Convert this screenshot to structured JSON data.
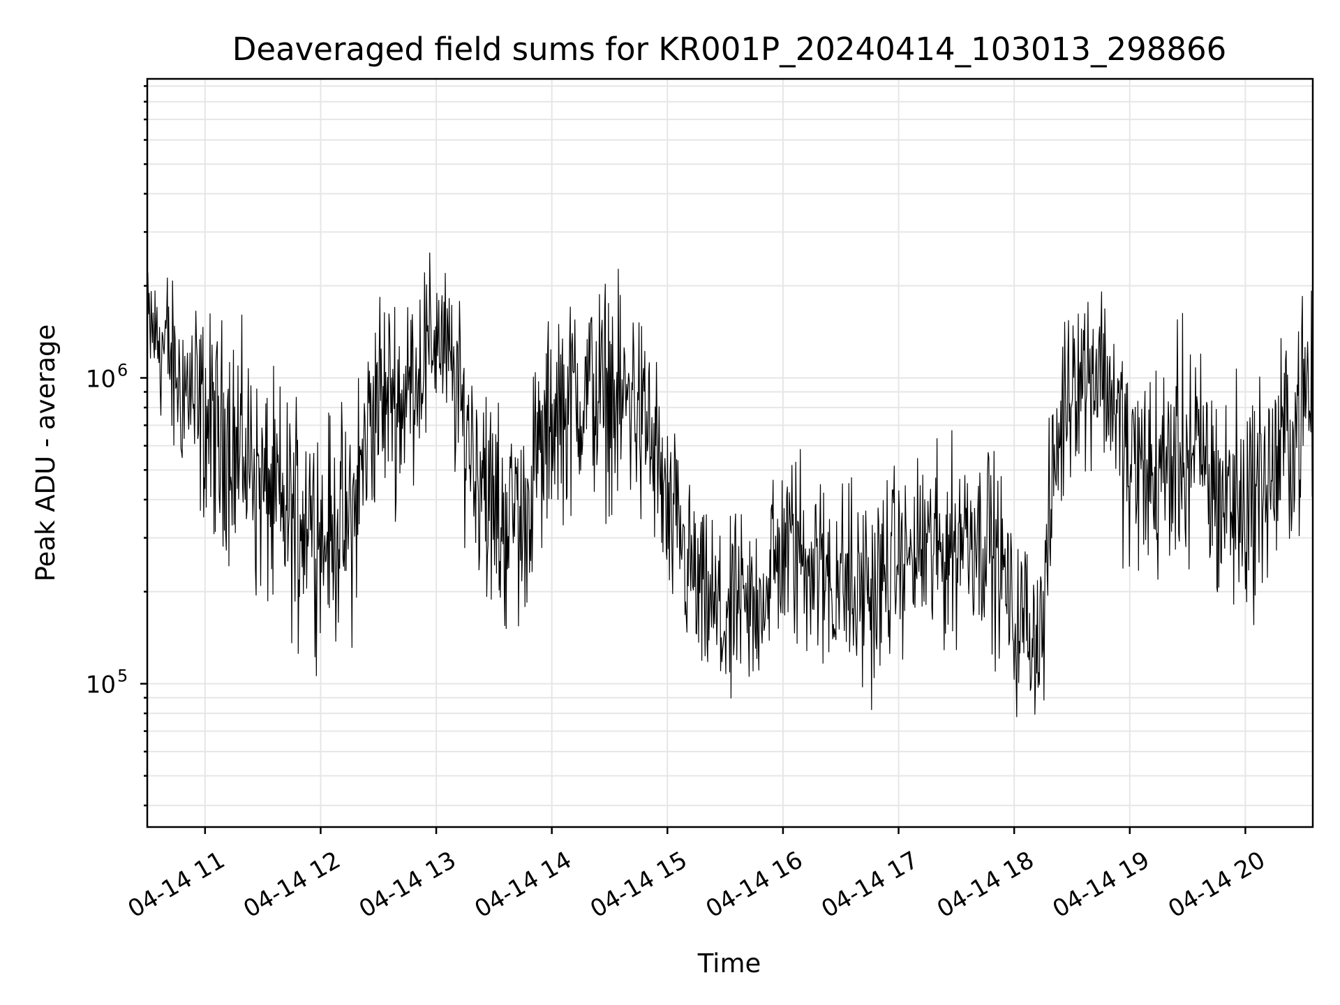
{
  "chart_data": {
    "type": "line",
    "title": "Deaveraged field sums for KR001P_20240414_103013_298866",
    "xlabel": "Time",
    "ylabel": "Peak ADU - average",
    "y_scale": "log",
    "ylim": [
      34000,
      9500000
    ],
    "xlim": [
      "04-14 10:30",
      "04-14 20:35"
    ],
    "grid": true,
    "x_ticks": [
      "04-14 11",
      "04-14 12",
      "04-14 13",
      "04-14 14",
      "04-14 15",
      "04-14 16",
      "04-14 17",
      "04-14 18",
      "04-14 19",
      "04-14 20"
    ],
    "y_ticks": [
      {
        "base": "10",
        "exp": "5",
        "value": 100000
      },
      {
        "base": "10",
        "exp": "6",
        "value": 1000000
      }
    ],
    "series": [
      {
        "color": "#000000",
        "x": [
          "04-14 10:30",
          "04-14 10:45",
          "04-14 11:00",
          "04-14 11:15",
          "04-14 11:30",
          "04-14 11:45",
          "04-14 12:00",
          "04-14 12:15",
          "04-14 12:30",
          "04-14 12:45",
          "04-14 13:00",
          "04-14 13:15",
          "04-14 13:30",
          "04-14 13:45",
          "04-14 14:00",
          "04-14 14:15",
          "04-14 14:30",
          "04-14 14:45",
          "04-14 15:00",
          "04-14 15:15",
          "04-14 15:30",
          "04-14 15:45",
          "04-14 16:00",
          "04-14 16:15",
          "04-14 16:30",
          "04-14 16:45",
          "04-14 17:00",
          "04-14 17:15",
          "04-14 17:30",
          "04-14 17:45",
          "04-14 18:00",
          "04-14 18:15",
          "04-14 18:30",
          "04-14 18:45",
          "04-14 19:00",
          "04-14 19:15",
          "04-14 19:30",
          "04-14 19:45",
          "04-14 20:00",
          "04-14 20:15",
          "04-14 20:30"
        ],
        "level": [
          1500000,
          1050000,
          700000,
          620000,
          420000,
          360000,
          330000,
          300000,
          820000,
          900000,
          1400000,
          700000,
          330000,
          340000,
          700000,
          900000,
          900000,
          800000,
          350000,
          190000,
          160000,
          170000,
          280000,
          260000,
          220000,
          200000,
          250000,
          270000,
          300000,
          320000,
          160000,
          150000,
          1000000,
          1100000,
          500000,
          500000,
          600000,
          450000,
          380000,
          500000,
          800000
        ],
        "spread": [
          1.7,
          2.4,
          2.8,
          3.0,
          3.0,
          3.0,
          3.0,
          3.0,
          2.8,
          2.7,
          2.2,
          2.5,
          3.0,
          2.8,
          2.7,
          2.8,
          2.8,
          2.8,
          2.5,
          2.4,
          2.4,
          2.4,
          2.6,
          2.7,
          2.7,
          2.7,
          2.4,
          2.4,
          2.6,
          2.5,
          2.3,
          2.3,
          2.2,
          2.3,
          3.0,
          3.0,
          3.0,
          3.0,
          3.0,
          3.0,
          2.8
        ]
      }
    ]
  }
}
